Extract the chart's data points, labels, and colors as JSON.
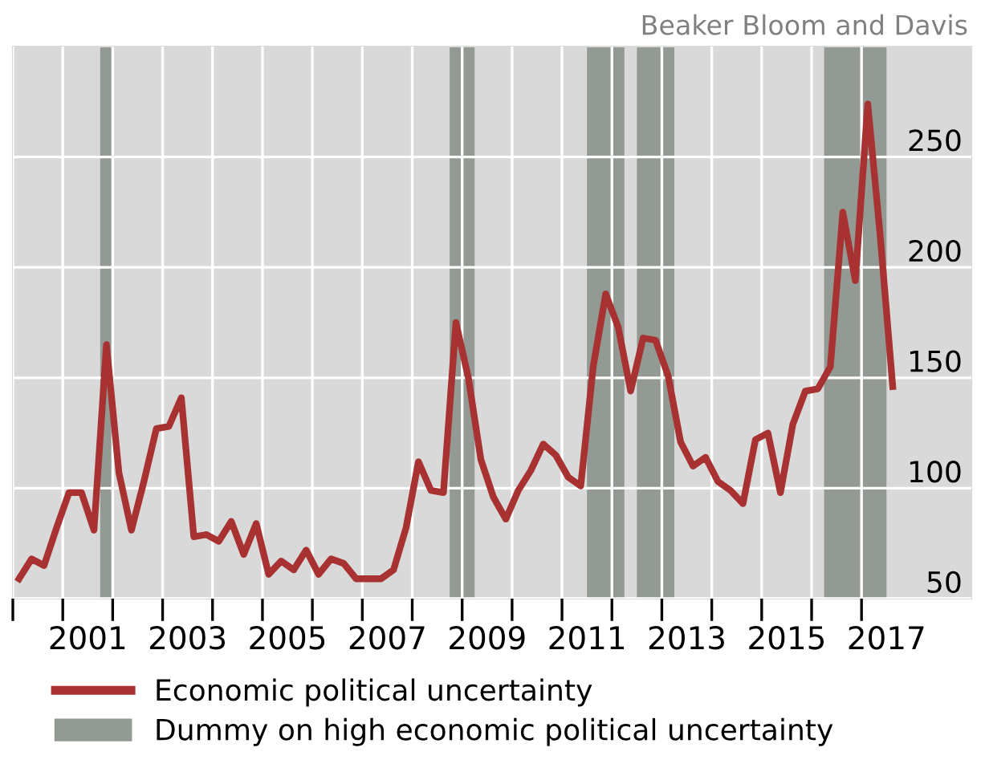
{
  "chart_data": {
    "type": "line",
    "annotations": [
      "Beaker Bloom and Davis"
    ],
    "x": [
      2000.125,
      2000.375,
      2000.625,
      2000.875,
      2001.125,
      2001.375,
      2001.625,
      2001.875,
      2002.125,
      2002.375,
      2002.625,
      2002.875,
      2003.125,
      2003.375,
      2003.625,
      2003.875,
      2004.125,
      2004.375,
      2004.625,
      2004.875,
      2005.125,
      2005.375,
      2005.625,
      2005.875,
      2006.125,
      2006.375,
      2006.625,
      2006.875,
      2007.125,
      2007.375,
      2007.625,
      2007.875,
      2008.125,
      2008.375,
      2008.625,
      2008.875,
      2009.125,
      2009.375,
      2009.625,
      2009.875,
      2010.125,
      2010.375,
      2010.625,
      2010.875,
      2011.125,
      2011.375,
      2011.625,
      2011.875,
      2012.125,
      2012.375,
      2012.625,
      2012.875,
      2013.125,
      2013.375,
      2013.625,
      2013.875,
      2014.125,
      2014.375,
      2014.625,
      2014.875,
      2015.125,
      2015.375,
      2015.625,
      2015.875,
      2016.125,
      2016.375,
      2016.625,
      2016.875,
      2017.125,
      2017.375,
      2017.625
    ],
    "series": [
      {
        "name": "Economic political uncertainty",
        "color": "#a83232",
        "values": [
          59,
          68,
          65,
          82,
          98,
          98,
          81,
          165,
          107,
          81,
          103,
          127,
          128,
          141,
          78,
          79,
          76,
          85,
          70,
          84,
          61,
          67,
          63,
          72,
          61,
          68,
          66,
          59,
          59,
          59,
          63,
          82,
          112,
          99,
          98,
          175,
          150,
          113,
          96,
          86,
          99,
          108,
          120,
          115,
          105,
          101,
          155,
          188,
          173,
          144,
          168,
          167,
          151,
          121,
          110,
          114,
          103,
          99,
          93,
          122,
          125,
          98,
          129,
          144,
          145,
          155,
          225,
          194,
          274,
          214,
          146
        ]
      }
    ],
    "bands": [
      {
        "axis": "x",
        "from": 2001.75,
        "to": 2002.0,
        "color": "#939a93",
        "label": "Dummy on high economic political uncertainty"
      },
      {
        "axis": "x",
        "from": 2008.75,
        "to": 2009.25,
        "color": "#939a93"
      },
      {
        "axis": "x",
        "from": 2011.5,
        "to": 2012.25,
        "color": "#939a93"
      },
      {
        "axis": "x",
        "from": 2012.5,
        "to": 2013.25,
        "color": "#939a93"
      },
      {
        "axis": "x",
        "from": 2016.25,
        "to": 2017.5,
        "color": "#939a93"
      }
    ],
    "xlim": [
      2000,
      2019.2
    ],
    "xticks": [
      {
        "value": 2000,
        "label": null
      },
      {
        "value": 2001,
        "label": null
      },
      {
        "value": 2002,
        "label": null
      },
      {
        "value": 2003,
        "label": null
      },
      {
        "value": 2004,
        "label": null
      },
      {
        "value": 2005,
        "label": null
      },
      {
        "value": 2006,
        "label": null
      },
      {
        "value": 2007,
        "label": null
      },
      {
        "value": 2008,
        "label": null
      },
      {
        "value": 2009,
        "label": null
      },
      {
        "value": 2010,
        "label": null
      },
      {
        "value": 2011,
        "label": null
      },
      {
        "value": 2012,
        "label": null
      },
      {
        "value": 2013,
        "label": null
      },
      {
        "value": 2014,
        "label": null
      },
      {
        "value": 2015,
        "label": null
      },
      {
        "value": 2016,
        "label": null
      },
      {
        "value": 2017,
        "label": null
      },
      {
        "value": 2001.5,
        "label": "2001"
      },
      {
        "value": 2003.5,
        "label": "2003"
      },
      {
        "value": 2005.5,
        "label": "2005"
      },
      {
        "value": 2007.5,
        "label": "2007"
      },
      {
        "value": 2009.5,
        "label": "2009"
      },
      {
        "value": 2011.5,
        "label": "2011"
      },
      {
        "value": 2013.5,
        "label": "2013"
      },
      {
        "value": 2015.5,
        "label": "2015"
      },
      {
        "value": 2017.5,
        "label": "2017"
      }
    ],
    "ylim": [
      50,
      300
    ],
    "yticks": [
      50,
      100,
      150,
      200,
      250
    ],
    "grid": true,
    "legend": "bottom",
    "marker": "none",
    "line_style": "solid"
  }
}
